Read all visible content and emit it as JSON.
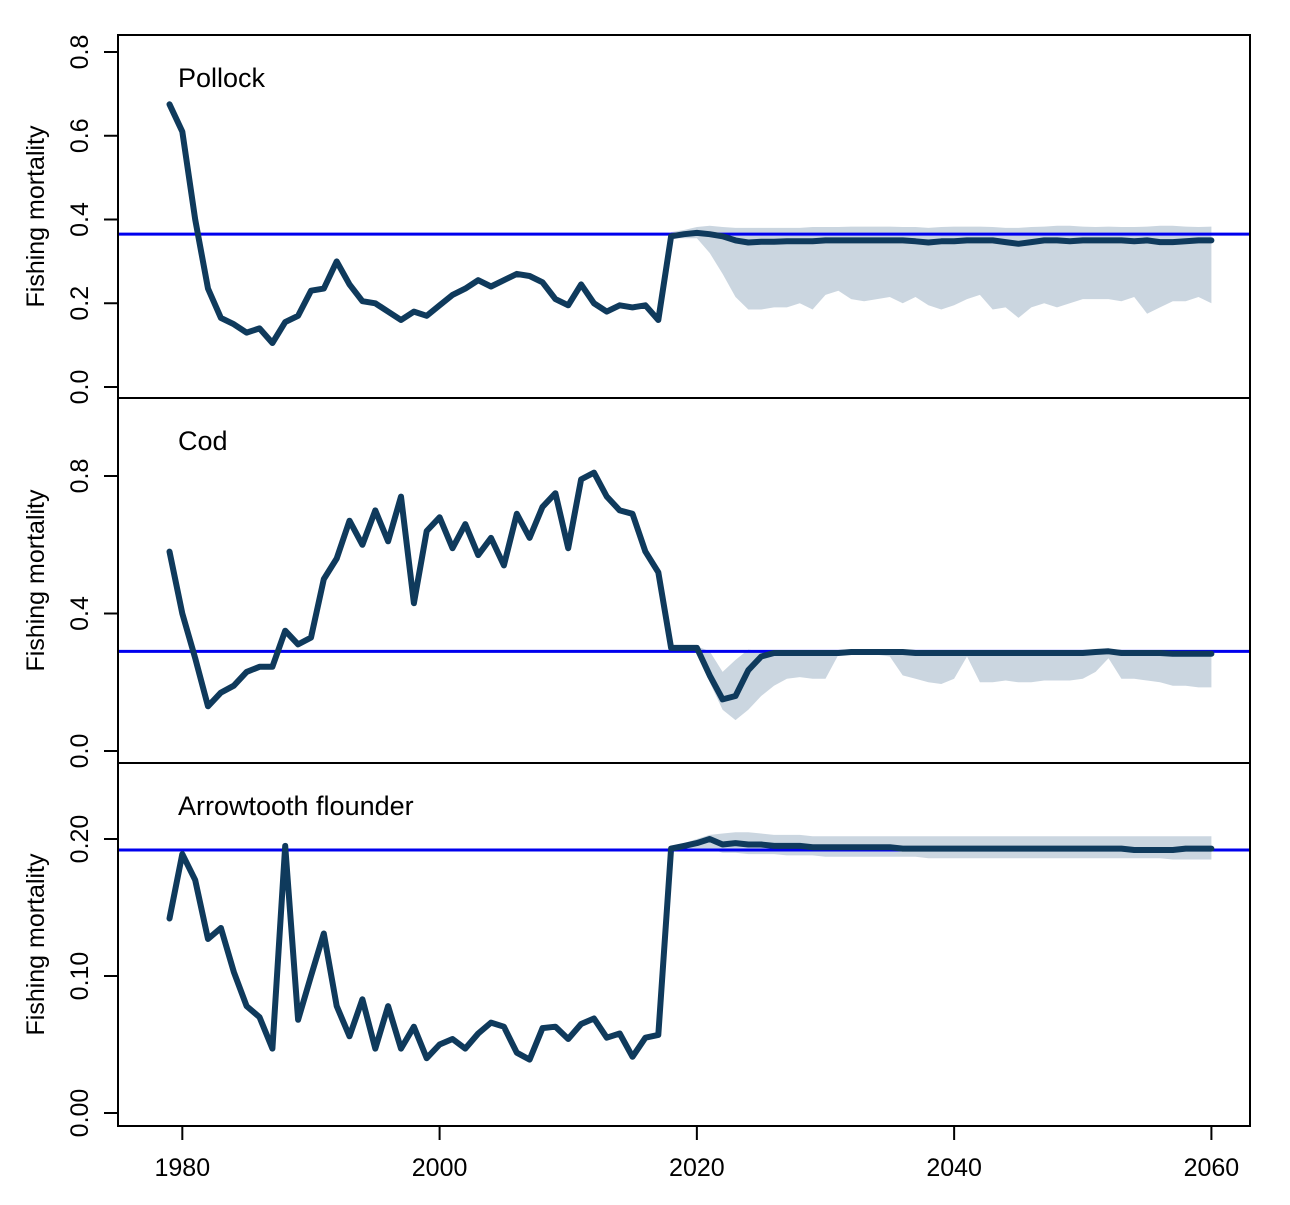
{
  "chart_data": [
    {
      "type": "line",
      "title": "Pollock",
      "ylabel": "Fishing mortality",
      "xlim": [
        1975,
        2063
      ],
      "ylim": [
        0,
        0.8
      ],
      "y_ticks": [
        "0.0",
        "0.2",
        "0.4",
        "0.6",
        "0.8"
      ],
      "y_tick_values": [
        0,
        0.2,
        0.4,
        0.6,
        0.8
      ],
      "reference_line": 0.365,
      "series": [
        {
          "x": [
            1979,
            1980,
            1981,
            1982,
            1983,
            1984,
            1985,
            1986,
            1987,
            1988,
            1989,
            1990,
            1991,
            1992,
            1993,
            1994,
            1995,
            1996,
            1997,
            1998,
            1999,
            2000,
            2001,
            2002,
            2003,
            2004,
            2005,
            2006,
            2007,
            2008,
            2009,
            2010,
            2011,
            2012,
            2013,
            2014,
            2015,
            2016,
            2017,
            2018,
            2019,
            2020,
            2021,
            2022,
            2023,
            2024,
            2025,
            2026,
            2027,
            2028,
            2029,
            2030,
            2031,
            2032,
            2033,
            2034,
            2035,
            2036,
            2037,
            2038,
            2039,
            2040,
            2041,
            2042,
            2043,
            2044,
            2045,
            2046,
            2047,
            2048,
            2049,
            2050,
            2051,
            2052,
            2053,
            2054,
            2055,
            2056,
            2057,
            2058,
            2059,
            2060
          ],
          "y": [
            0.675,
            0.61,
            0.4,
            0.235,
            0.165,
            0.15,
            0.13,
            0.14,
            0.105,
            0.155,
            0.17,
            0.23,
            0.235,
            0.3,
            0.245,
            0.205,
            0.2,
            0.18,
            0.16,
            0.18,
            0.17,
            0.195,
            0.22,
            0.235,
            0.255,
            0.24,
            0.255,
            0.27,
            0.265,
            0.25,
            0.21,
            0.195,
            0.245,
            0.2,
            0.18,
            0.195,
            0.19,
            0.195,
            0.16,
            0.36,
            0.365,
            0.368,
            0.365,
            0.36,
            0.35,
            0.345,
            0.347,
            0.347,
            0.348,
            0.348,
            0.348,
            0.35,
            0.35,
            0.35,
            0.35,
            0.35,
            0.35,
            0.35,
            0.348,
            0.345,
            0.348,
            0.348,
            0.35,
            0.35,
            0.35,
            0.346,
            0.342,
            0.346,
            0.35,
            0.35,
            0.348,
            0.35,
            0.35,
            0.35,
            0.35,
            0.348,
            0.35,
            0.346,
            0.346,
            0.348,
            0.35,
            0.35
          ]
        }
      ],
      "ribbon": {
        "x": [
          2018,
          2019,
          2020,
          2021,
          2022,
          2023,
          2024,
          2025,
          2026,
          2027,
          2028,
          2029,
          2030,
          2031,
          2032,
          2033,
          2034,
          2035,
          2036,
          2037,
          2038,
          2039,
          2040,
          2041,
          2042,
          2043,
          2044,
          2045,
          2046,
          2047,
          2048,
          2049,
          2050,
          2051,
          2052,
          2053,
          2054,
          2055,
          2056,
          2057,
          2058,
          2059,
          2060
        ],
        "upper": [
          0.37,
          0.375,
          0.382,
          0.385,
          0.382,
          0.38,
          0.38,
          0.38,
          0.38,
          0.38,
          0.38,
          0.382,
          0.382,
          0.382,
          0.383,
          0.383,
          0.383,
          0.383,
          0.382,
          0.382,
          0.38,
          0.382,
          0.383,
          0.383,
          0.383,
          0.382,
          0.38,
          0.38,
          0.382,
          0.383,
          0.385,
          0.385,
          0.383,
          0.382,
          0.383,
          0.382,
          0.382,
          0.383,
          0.385,
          0.385,
          0.383,
          0.382,
          0.383
        ],
        "lower": [
          0.355,
          0.355,
          0.355,
          0.32,
          0.27,
          0.215,
          0.185,
          0.185,
          0.19,
          0.19,
          0.2,
          0.185,
          0.22,
          0.23,
          0.21,
          0.205,
          0.21,
          0.215,
          0.2,
          0.215,
          0.195,
          0.185,
          0.195,
          0.21,
          0.22,
          0.185,
          0.19,
          0.165,
          0.19,
          0.2,
          0.19,
          0.2,
          0.21,
          0.21,
          0.21,
          0.205,
          0.215,
          0.175,
          0.19,
          0.205,
          0.205,
          0.215,
          0.2
        ]
      }
    },
    {
      "type": "line",
      "title": "Cod",
      "ylabel": "Fishing mortality",
      "xlim": [
        1975,
        2063
      ],
      "ylim": [
        0,
        0.8
      ],
      "y_ticks": [
        "0.0",
        "0.4",
        "0.8"
      ],
      "y_tick_values": [
        0,
        0.4,
        0.8
      ],
      "reference_line": 0.29,
      "series": [
        {
          "x": [
            1979,
            1980,
            1981,
            1982,
            1983,
            1984,
            1985,
            1986,
            1987,
            1988,
            1989,
            1990,
            1991,
            1992,
            1993,
            1994,
            1995,
            1996,
            1997,
            1998,
            1999,
            2000,
            2001,
            2002,
            2003,
            2004,
            2005,
            2006,
            2007,
            2008,
            2009,
            2010,
            2011,
            2012,
            2013,
            2014,
            2015,
            2016,
            2017,
            2018,
            2019,
            2020,
            2021,
            2022,
            2023,
            2024,
            2025,
            2026,
            2027,
            2028,
            2029,
            2030,
            2031,
            2032,
            2033,
            2034,
            2035,
            2036,
            2037,
            2038,
            2039,
            2040,
            2041,
            2042,
            2043,
            2044,
            2045,
            2046,
            2047,
            2048,
            2049,
            2050,
            2051,
            2052,
            2053,
            2054,
            2055,
            2056,
            2057,
            2058,
            2059,
            2060
          ],
          "y": [
            0.58,
            0.4,
            0.27,
            0.13,
            0.17,
            0.19,
            0.23,
            0.245,
            0.245,
            0.35,
            0.31,
            0.33,
            0.5,
            0.56,
            0.67,
            0.6,
            0.7,
            0.61,
            0.74,
            0.43,
            0.64,
            0.68,
            0.59,
            0.66,
            0.57,
            0.62,
            0.54,
            0.69,
            0.62,
            0.71,
            0.75,
            0.59,
            0.79,
            0.81,
            0.74,
            0.7,
            0.69,
            0.58,
            0.52,
            0.3,
            0.3,
            0.3,
            0.22,
            0.15,
            0.16,
            0.235,
            0.275,
            0.285,
            0.285,
            0.285,
            0.285,
            0.285,
            0.285,
            0.288,
            0.288,
            0.288,
            0.288,
            0.288,
            0.285,
            0.285,
            0.285,
            0.285,
            0.285,
            0.285,
            0.285,
            0.285,
            0.285,
            0.285,
            0.285,
            0.285,
            0.285,
            0.285,
            0.288,
            0.29,
            0.285,
            0.285,
            0.285,
            0.285,
            0.283,
            0.283,
            0.283,
            0.283
          ]
        }
      ],
      "ribbon": {
        "x": [
          2018,
          2019,
          2020,
          2021,
          2022,
          2023,
          2024,
          2025,
          2026,
          2027,
          2028,
          2029,
          2030,
          2031,
          2032,
          2033,
          2034,
          2035,
          2036,
          2037,
          2038,
          2039,
          2040,
          2041,
          2042,
          2043,
          2044,
          2045,
          2046,
          2047,
          2048,
          2049,
          2050,
          2051,
          2052,
          2053,
          2054,
          2055,
          2056,
          2057,
          2058,
          2059,
          2060
        ],
        "upper": [
          0.305,
          0.305,
          0.305,
          0.29,
          0.23,
          0.265,
          0.295,
          0.29,
          0.29,
          0.29,
          0.29,
          0.29,
          0.29,
          0.29,
          0.292,
          0.292,
          0.292,
          0.292,
          0.292,
          0.29,
          0.29,
          0.29,
          0.29,
          0.29,
          0.29,
          0.29,
          0.29,
          0.29,
          0.29,
          0.29,
          0.29,
          0.29,
          0.29,
          0.292,
          0.295,
          0.29,
          0.29,
          0.29,
          0.29,
          0.29,
          0.29,
          0.29,
          0.29
        ],
        "lower": [
          0.29,
          0.29,
          0.285,
          0.2,
          0.12,
          0.09,
          0.12,
          0.16,
          0.19,
          0.21,
          0.215,
          0.21,
          0.21,
          0.28,
          0.28,
          0.28,
          0.28,
          0.275,
          0.22,
          0.21,
          0.2,
          0.195,
          0.21,
          0.275,
          0.2,
          0.2,
          0.205,
          0.2,
          0.2,
          0.205,
          0.205,
          0.205,
          0.21,
          0.23,
          0.27,
          0.21,
          0.21,
          0.205,
          0.2,
          0.19,
          0.19,
          0.185,
          0.185
        ]
      }
    },
    {
      "type": "line",
      "title": "Arrowtooth flounder",
      "xlabel": "",
      "ylabel": "Fishing mortality",
      "xlim": [
        1975,
        2063
      ],
      "ylim": [
        0,
        0.2
      ],
      "x_ticks": [
        "1980",
        "2000",
        "2020",
        "2040",
        "2060"
      ],
      "x_tick_values": [
        1980,
        2000,
        2020,
        2040,
        2060
      ],
      "y_ticks": [
        "0.00",
        "0.10",
        "0.20"
      ],
      "y_tick_values": [
        0,
        0.1,
        0.2
      ],
      "reference_line": 0.192,
      "series": [
        {
          "x": [
            1979,
            1980,
            1981,
            1982,
            1983,
            1984,
            1985,
            1986,
            1987,
            1988,
            1989,
            1990,
            1991,
            1992,
            1993,
            1994,
            1995,
            1996,
            1997,
            1998,
            1999,
            2000,
            2001,
            2002,
            2003,
            2004,
            2005,
            2006,
            2007,
            2008,
            2009,
            2010,
            2011,
            2012,
            2013,
            2014,
            2015,
            2016,
            2017,
            2018,
            2019,
            2020,
            2021,
            2022,
            2023,
            2024,
            2025,
            2026,
            2027,
            2028,
            2029,
            2030,
            2031,
            2032,
            2033,
            2034,
            2035,
            2036,
            2037,
            2038,
            2039,
            2040,
            2041,
            2042,
            2043,
            2044,
            2045,
            2046,
            2047,
            2048,
            2049,
            2050,
            2051,
            2052,
            2053,
            2054,
            2055,
            2056,
            2057,
            2058,
            2059,
            2060
          ],
          "y": [
            0.142,
            0.189,
            0.17,
            0.127,
            0.135,
            0.103,
            0.078,
            0.07,
            0.047,
            0.195,
            0.068,
            0.1,
            0.131,
            0.078,
            0.056,
            0.083,
            0.047,
            0.078,
            0.047,
            0.063,
            0.04,
            0.05,
            0.054,
            0.047,
            0.058,
            0.066,
            0.063,
            0.044,
            0.039,
            0.062,
            0.063,
            0.054,
            0.065,
            0.069,
            0.055,
            0.058,
            0.041,
            0.055,
            0.057,
            0.193,
            0.195,
            0.197,
            0.2,
            0.196,
            0.197,
            0.196,
            0.196,
            0.195,
            0.195,
            0.195,
            0.194,
            0.194,
            0.194,
            0.194,
            0.194,
            0.194,
            0.194,
            0.193,
            0.193,
            0.193,
            0.193,
            0.193,
            0.193,
            0.193,
            0.193,
            0.193,
            0.193,
            0.193,
            0.193,
            0.193,
            0.193,
            0.193,
            0.193,
            0.193,
            0.193,
            0.192,
            0.192,
            0.192,
            0.192,
            0.193,
            0.193,
            0.193
          ]
        }
      ],
      "ribbon": {
        "x": [
          2018,
          2019,
          2020,
          2021,
          2022,
          2023,
          2024,
          2025,
          2026,
          2027,
          2028,
          2029,
          2030,
          2031,
          2032,
          2033,
          2034,
          2035,
          2036,
          2037,
          2038,
          2039,
          2040,
          2041,
          2042,
          2043,
          2044,
          2045,
          2046,
          2047,
          2048,
          2049,
          2050,
          2051,
          2052,
          2053,
          2054,
          2055,
          2056,
          2057,
          2058,
          2059,
          2060
        ],
        "upper": [
          0.195,
          0.197,
          0.2,
          0.203,
          0.204,
          0.205,
          0.205,
          0.204,
          0.203,
          0.203,
          0.203,
          0.202,
          0.202,
          0.202,
          0.202,
          0.202,
          0.202,
          0.202,
          0.202,
          0.202,
          0.202,
          0.202,
          0.202,
          0.202,
          0.202,
          0.202,
          0.202,
          0.202,
          0.202,
          0.202,
          0.202,
          0.202,
          0.202,
          0.202,
          0.202,
          0.202,
          0.202,
          0.202,
          0.202,
          0.202,
          0.202,
          0.202,
          0.202
        ],
        "lower": [
          0.192,
          0.193,
          0.193,
          0.193,
          0.19,
          0.19,
          0.189,
          0.189,
          0.189,
          0.188,
          0.188,
          0.188,
          0.187,
          0.187,
          0.187,
          0.187,
          0.187,
          0.187,
          0.187,
          0.187,
          0.186,
          0.186,
          0.186,
          0.186,
          0.186,
          0.186,
          0.186,
          0.186,
          0.186,
          0.186,
          0.186,
          0.186,
          0.186,
          0.186,
          0.186,
          0.186,
          0.186,
          0.186,
          0.186,
          0.185,
          0.185,
          0.185,
          0.185
        ]
      }
    }
  ],
  "style": {
    "line_color": "#0f3a5c",
    "ribbon_color": "#cbd6e0",
    "reference_line_color": "#0000ee",
    "frame_color": "#000000"
  }
}
